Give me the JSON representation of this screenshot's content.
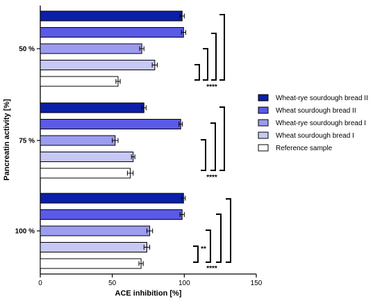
{
  "chart_data": {
    "type": "bar",
    "orientation": "horizontal",
    "xlabel": "ACE inhibition [%]",
    "ylabel": "Pancreatin activity [%]",
    "xlim": [
      0,
      150
    ],
    "x_ticks": [
      "0",
      "50",
      "100",
      "150"
    ],
    "x_tick_values": [
      0,
      50,
      100,
      150
    ],
    "grid": false,
    "legend_position": "right",
    "categories": [
      "50 %",
      "75 %",
      "100 %"
    ],
    "series": [
      {
        "name": "Wheat-rye sourdough bread II",
        "color": "#0b1fa8",
        "values": [
          98.5,
          72,
          99.5
        ],
        "errors": [
          1.5,
          1.5,
          1.2
        ]
      },
      {
        "name": "Wheat sourdough bread II",
        "color": "#5a5ae6",
        "values": [
          99.5,
          97.5,
          98.5
        ],
        "errors": [
          1.5,
          1.2,
          1.5
        ]
      },
      {
        "name": "Wheat-rye sourdough bread I",
        "color": "#9c9cf0",
        "values": [
          70.5,
          52,
          76
        ],
        "errors": [
          1.5,
          2,
          2
        ]
      },
      {
        "name": "Wheat sourdough bread I",
        "color": "#c8c8f7",
        "values": [
          79.5,
          64.5,
          74
        ],
        "errors": [
          1.8,
          1.2,
          2
        ]
      },
      {
        "name": "Reference sample",
        "color": "#ffffff",
        "values": [
          54,
          62.5,
          70
        ],
        "errors": [
          1.5,
          2,
          1.5
        ]
      }
    ],
    "annotations": [
      {
        "group": "50 %",
        "label": "****",
        "pair_label": ""
      },
      {
        "group": "75 %",
        "label": "****",
        "pair_label": ""
      },
      {
        "group": "100 %",
        "label": "****",
        "pair_label": "**"
      }
    ]
  }
}
